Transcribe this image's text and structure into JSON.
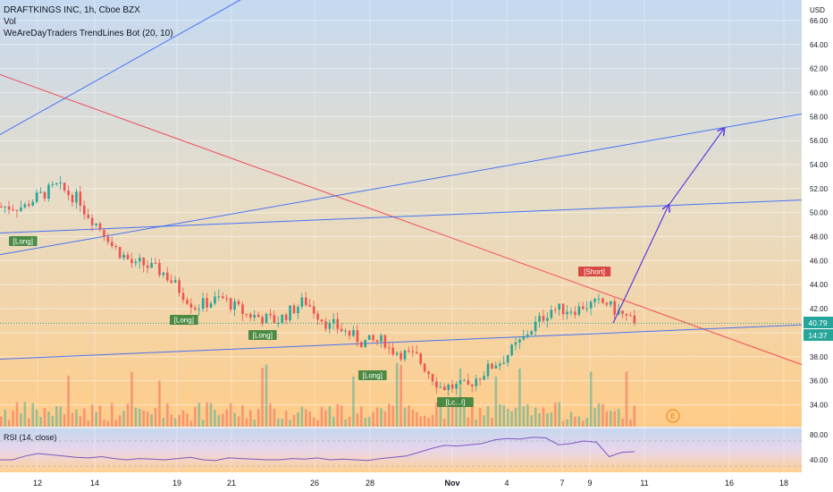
{
  "header": {
    "symbol_line": "DRAFTKINGS INC, 1h, Cboe BZX",
    "vol_label": "Vol",
    "indicator_label": "WeAreDayTraders TrendLines Bot (20, 10)"
  },
  "price_axis": {
    "currency": "USD",
    "ticks": [
      "66.00",
      "64.00",
      "62.00",
      "60.00",
      "58.00",
      "56.00",
      "54.00",
      "52.00",
      "50.00",
      "48.00",
      "46.00",
      "44.00",
      "42.00",
      "40.00",
      "38.00",
      "36.00",
      "34.00"
    ],
    "last_price": "40.79",
    "countdown": "14:37"
  },
  "rsi_pane": {
    "label": "RSI (14, close)",
    "ticks": [
      "80.00",
      "40.00"
    ]
  },
  "time_axis": {
    "ticks": [
      "12",
      "14",
      "19",
      "21",
      "26",
      "28",
      "Nov",
      "4",
      "7",
      "9",
      "11",
      "16",
      "18"
    ]
  },
  "signals": [
    {
      "text": "[Long]",
      "type": "long"
    },
    {
      "text": "[Long]",
      "type": "long"
    },
    {
      "text": "[Long]",
      "type": "long"
    },
    {
      "text": "[Long]",
      "type": "long"
    },
    {
      "text": "[Lc...I]",
      "type": "long"
    },
    {
      "text": "[Short]",
      "type": "short"
    }
  ],
  "earnings_marker": "E",
  "colors": {
    "up": "#26a69a",
    "down": "#ef5350",
    "trendline_blue": "#2962ff",
    "trendline_red": "#f23645",
    "projection": "#5b3fe0",
    "rsi": "#7e57c2",
    "long_label": "#2e7d32",
    "short_label": "#d32f2f"
  },
  "chart_data": {
    "type": "candlestick",
    "interval": "1h",
    "x_tick_labels": [
      "12",
      "14",
      "19",
      "21",
      "26",
      "28",
      "Nov",
      "4",
      "7",
      "9",
      "11",
      "16",
      "18"
    ],
    "ylim": [
      33,
      67
    ],
    "close_path_approx": [
      {
        "date": "Oct 11",
        "price": 50.5
      },
      {
        "date": "Oct 12",
        "price": 52.0
      },
      {
        "date": "Oct 13",
        "price": 51.0
      },
      {
        "date": "Oct 14",
        "price": 48.0
      },
      {
        "date": "Oct 17",
        "price": 45.5
      },
      {
        "date": "Oct 18",
        "price": 45.0
      },
      {
        "date": "Oct 19",
        "price": 42.5
      },
      {
        "date": "Oct 20",
        "price": 42.8
      },
      {
        "date": "Oct 21",
        "price": 41.5
      },
      {
        "date": "Oct 24",
        "price": 41.0
      },
      {
        "date": "Oct 25",
        "price": 42.5
      },
      {
        "date": "Oct 26",
        "price": 40.5
      },
      {
        "date": "Oct 27",
        "price": 39.5
      },
      {
        "date": "Oct 28",
        "price": 39.3
      },
      {
        "date": "Oct 31",
        "price": 38.0
      },
      {
        "date": "Nov 1",
        "price": 35.5
      },
      {
        "date": "Nov 2",
        "price": 35.5
      },
      {
        "date": "Nov 3",
        "price": 37.5
      },
      {
        "date": "Nov 4",
        "price": 39.5
      },
      {
        "date": "Nov 7",
        "price": 42.0
      },
      {
        "date": "Nov 8",
        "price": 42.0
      },
      {
        "date": "Nov 9",
        "price": 42.5
      },
      {
        "date": "Nov 10",
        "price": 40.79
      }
    ],
    "trendlines": [
      {
        "color": "blue",
        "from": {
          "date": "Oct 11",
          "price": 56.5
        },
        "to": {
          "date": "Oct 23",
          "price": 68.0
        }
      },
      {
        "color": "red",
        "from": {
          "date": "Oct 11",
          "price": 61.5
        },
        "to": {
          "date": "Nov 18",
          "price": 37.8
        }
      },
      {
        "color": "blue",
        "from": {
          "date": "Oct 11",
          "price": 46.5
        },
        "to": {
          "date": "Nov 18",
          "price": 58.0
        }
      },
      {
        "color": "blue",
        "from": {
          "date": "Oct 11",
          "price": 48.3
        },
        "to": {
          "date": "Nov 18",
          "price": 51.0
        }
      },
      {
        "color": "blue",
        "from": {
          "date": "Oct 11",
          "price": 37.8
        },
        "to": {
          "date": "Nov 18",
          "price": 40.6
        }
      }
    ],
    "projection": [
      {
        "date": "Nov 10",
        "price": 40.8
      },
      {
        "date": "Nov 14",
        "price": 50.6
      },
      {
        "date": "Nov 16",
        "price": 57.0
      }
    ],
    "rsi": {
      "ylim": [
        20,
        90
      ],
      "ticks": [
        80,
        40
      ],
      "values": [
        40,
        40,
        46,
        50,
        48,
        46,
        44,
        43,
        45,
        42,
        40,
        42,
        41,
        40,
        42,
        44,
        40,
        39,
        43,
        42,
        41,
        40,
        40,
        42,
        41,
        43,
        40,
        41,
        40,
        39,
        42,
        44,
        46,
        52,
        58,
        63,
        62,
        64,
        66,
        72,
        74,
        73,
        76,
        75,
        64,
        66,
        70,
        68,
        45,
        52,
        53
      ]
    }
  }
}
